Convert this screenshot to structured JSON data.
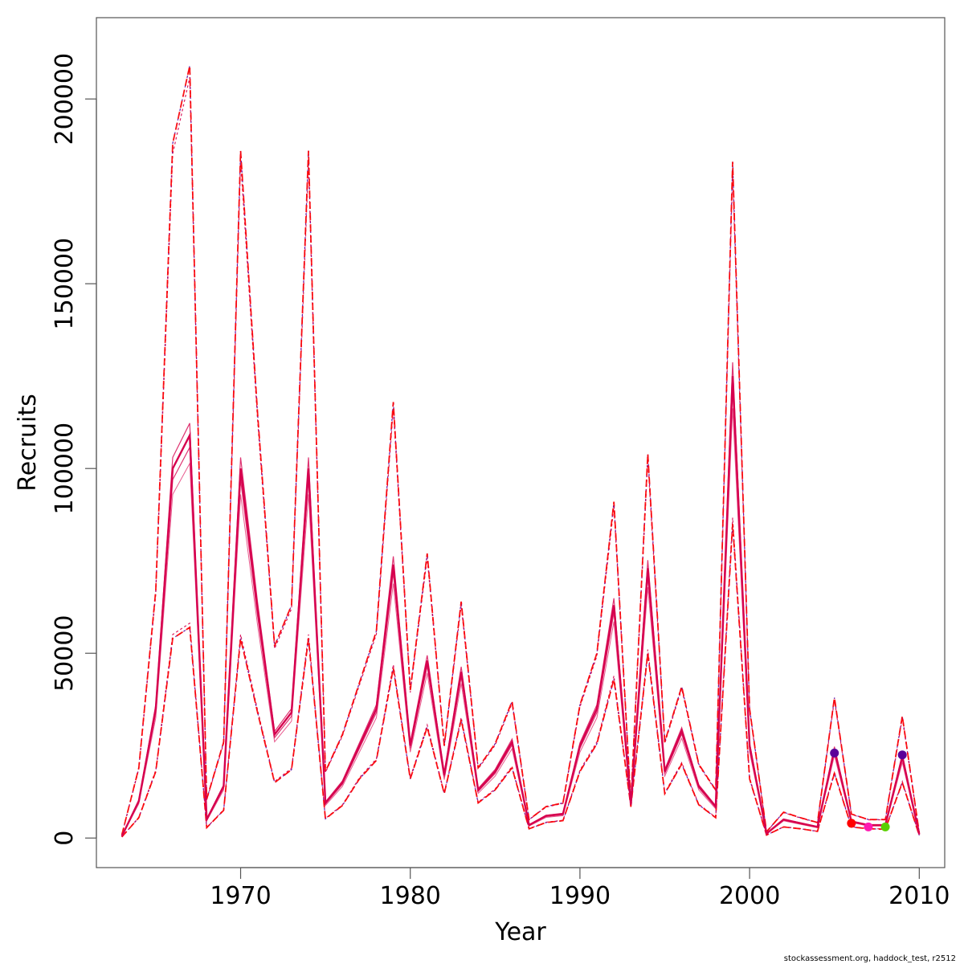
{
  "chart_data": {
    "type": "line",
    "xlabel": "Year",
    "ylabel": "Recruits",
    "xlim": [
      1961.5,
      2011.5
    ],
    "ylim": [
      -8000,
      222000
    ],
    "x_ticks": [
      1970,
      1980,
      1990,
      2000,
      2010
    ],
    "x_tick_labels": [
      "1970",
      "1980",
      "1990",
      "2000",
      "2010"
    ],
    "y_ticks": [
      0,
      50000,
      100000,
      150000,
      200000
    ],
    "y_tick_labels": [
      "0",
      "50000",
      "100000",
      "150000",
      "200000"
    ],
    "grid": false,
    "legend": "none",
    "colors": {
      "main": "#d6004e",
      "red": "#ff0000",
      "purple": "#5a009a",
      "magenta": "#ff1ab0",
      "green": "#5ad000"
    },
    "years": [
      1963,
      1964,
      1965,
      1966,
      1967,
      1968,
      1969,
      1970,
      1971,
      1972,
      1973,
      1974,
      1975,
      1976,
      1977,
      1978,
      1979,
      1980,
      1981,
      1982,
      1983,
      1984,
      1985,
      1986,
      1987,
      1988,
      1989,
      1990,
      1991,
      1992,
      1993,
      1994,
      1995,
      1996,
      1997,
      1998,
      1999,
      2000,
      2001,
      2002,
      2003,
      2004,
      2005,
      2006,
      2007,
      2008,
      2009,
      2010
    ],
    "estimate": [
      500,
      10000,
      35000,
      100000,
      109000,
      5000,
      14000,
      100000,
      62000,
      28000,
      34000,
      100000,
      9500,
      15000,
      25000,
      35000,
      74000,
      25000,
      48000,
      17000,
      45000,
      13000,
      18000,
      26000,
      3500,
      6000,
      6500,
      25000,
      35000,
      63000,
      9000,
      73000,
      18000,
      29000,
      14000,
      8500,
      125000,
      25000,
      1200,
      5000,
      4000,
      3000,
      24000,
      4500,
      3500,
      3500,
      22000,
      1000
    ],
    "lower": [
      300,
      5500,
      18000,
      54000,
      57000,
      2800,
      7500,
      54000,
      34000,
      15000,
      18500,
      54000,
      5200,
      8800,
      16000,
      21000,
      46000,
      16000,
      30000,
      12000,
      32000,
      9500,
      13000,
      19000,
      2500,
      4200,
      4700,
      18000,
      25500,
      43000,
      8500,
      50000,
      12000,
      20000,
      9000,
      5500,
      85000,
      16000,
      800,
      3000,
      2500,
      1800,
      17500,
      3000,
      2500,
      2400,
      15000,
      700
    ],
    "upper": [
      900,
      19000,
      67000,
      188000,
      209000,
      10500,
      26000,
      186000,
      115000,
      52000,
      63000,
      186000,
      18000,
      28000,
      42000,
      56000,
      118000,
      40000,
      77000,
      25000,
      64000,
      19000,
      25500,
      37000,
      5000,
      8500,
      9500,
      36000,
      50000,
      91000,
      9800,
      104000,
      26000,
      41000,
      20000,
      13000,
      183000,
      35000,
      1700,
      7000,
      5500,
      4200,
      38000,
      6500,
      5000,
      5000,
      33000,
      1400
    ],
    "retro_points": [
      {
        "year": 2005,
        "value": 23000,
        "color": "#5a009a"
      },
      {
        "year": 2006,
        "value": 4000,
        "color": "#ff0000"
      },
      {
        "year": 2007,
        "value": 3000,
        "color": "#ff1ab0"
      },
      {
        "year": 2008,
        "value": 3000,
        "color": "#5ad000"
      },
      {
        "year": 2009,
        "value": 22500,
        "color": "#5a009a"
      }
    ]
  },
  "footer": "stockassessment.org, haddock_test, r2512"
}
